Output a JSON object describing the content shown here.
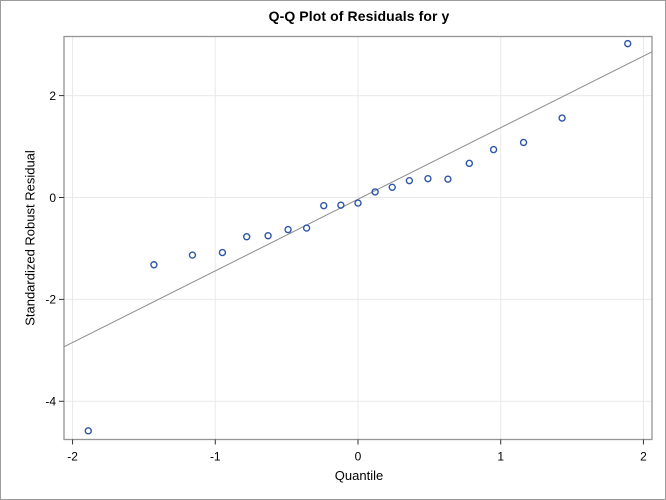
{
  "figure": {
    "title": "Q-Q Plot of Residuals for y",
    "xlabel": "Quantile",
    "ylabel": "Standardized Robust Residual"
  },
  "chart_data": {
    "type": "scatter",
    "title": "Q-Q Plot of Residuals for y",
    "xlabel": "Quantile",
    "ylabel": "Standardized Robust Residual",
    "xlim": [
      -2.06,
      2.06
    ],
    "ylim": [
      -4.75,
      3.16
    ],
    "xticks": [
      -2,
      -1,
      0,
      1,
      2
    ],
    "yticks": [
      2,
      0,
      -2,
      -4
    ],
    "grid": true,
    "legend": "none",
    "marker_shape": "open-circle",
    "points": [
      {
        "quantile": -1.89,
        "residual": -4.58
      },
      {
        "quantile": -1.43,
        "residual": -1.32
      },
      {
        "quantile": -1.16,
        "residual": -1.13
      },
      {
        "quantile": -0.95,
        "residual": -1.08
      },
      {
        "quantile": -0.78,
        "residual": -0.77
      },
      {
        "quantile": -0.63,
        "residual": -0.75
      },
      {
        "quantile": -0.49,
        "residual": -0.63
      },
      {
        "quantile": -0.36,
        "residual": -0.6
      },
      {
        "quantile": -0.24,
        "residual": -0.16
      },
      {
        "quantile": -0.12,
        "residual": -0.15
      },
      {
        "quantile": 0.0,
        "residual": -0.11
      },
      {
        "quantile": 0.12,
        "residual": 0.11
      },
      {
        "quantile": 0.24,
        "residual": 0.2
      },
      {
        "quantile": 0.36,
        "residual": 0.33
      },
      {
        "quantile": 0.49,
        "residual": 0.37
      },
      {
        "quantile": 0.63,
        "residual": 0.36
      },
      {
        "quantile": 0.78,
        "residual": 0.67
      },
      {
        "quantile": 0.95,
        "residual": 0.94
      },
      {
        "quantile": 1.16,
        "residual": 1.08
      },
      {
        "quantile": 1.43,
        "residual": 1.56
      },
      {
        "quantile": 1.89,
        "residual": 3.02
      }
    ],
    "reference_line": {
      "x1": -2.06,
      "y1": -2.93,
      "x2": 2.06,
      "y2": 2.86
    },
    "colors": {
      "marker": "#2d56a8",
      "reference_line": "#8c8c8c",
      "gridline": "#e9e9e9",
      "frame": "#949494",
      "tick": "#333333",
      "text": "#000000",
      "background": "#ffffff",
      "figure_border": "#9c9c9c"
    }
  }
}
